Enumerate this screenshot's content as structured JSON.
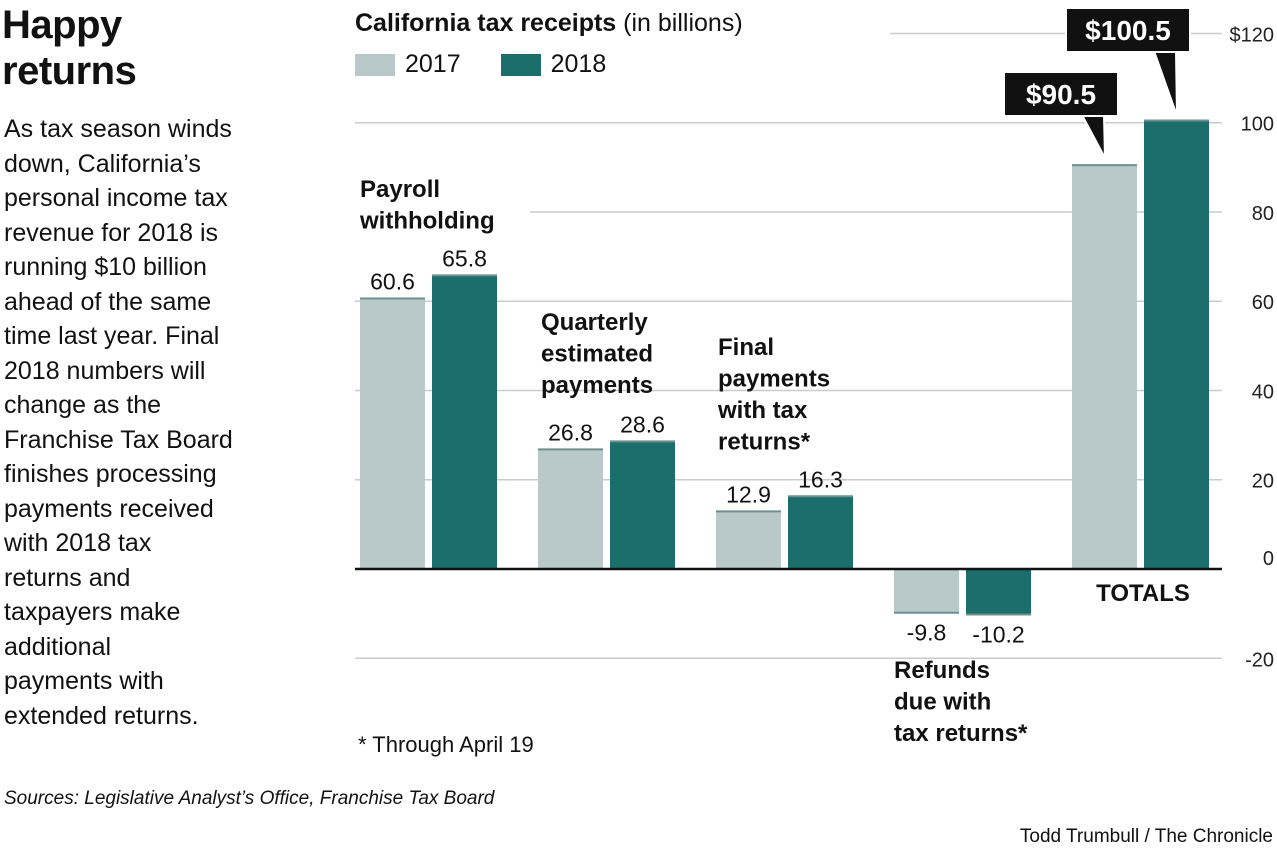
{
  "headline": "Happy\nreturns",
  "intro": "As tax season winds\ndown, California’s\npersonal income tax\nrevenue for 2018 is\nrunning $10 billion\nahead of the same\ntime last year. Final\n2018 numbers will\nchange as the\nFranchise Tax Board\nfinishes processing\npayments received\nwith 2018 tax\nreturns and\ntaxpayers make\nadditional\npayments with\nextended returns.",
  "sources": "Sources: Legislative Analyst’s Office, Franchise Tax Board",
  "credit": "Todd Trumbull / The Chronicle",
  "footnote": "* Through April 19",
  "chart_data": {
    "type": "bar",
    "title": "California tax receipts",
    "subtitle": "(in billions)",
    "categories": [
      "Payroll\nwithholding",
      "Quarterly\nestimated\npayments",
      "Final\npayments\nwith tax\nreturns*",
      "Refunds\ndue with\ntax returns*",
      "TOTALS"
    ],
    "series": [
      {
        "name": "2017",
        "color": "#b9c8c8",
        "values": [
          60.6,
          26.8,
          12.9,
          -9.8,
          90.5
        ]
      },
      {
        "name": "2018",
        "color": "#1c6e6c",
        "values": [
          65.8,
          28.6,
          16.3,
          -10.2,
          100.5
        ]
      }
    ],
    "value_labels": [
      [
        "60.6",
        "26.8",
        "12.9",
        "-9.8",
        "$90.5"
      ],
      [
        "65.8",
        "28.6",
        "16.3",
        "-10.2",
        "$100.5"
      ]
    ],
    "yticks": [
      -20,
      0,
      20,
      40,
      60,
      80,
      100,
      120
    ],
    "ytick_labels": [
      "-20",
      "0",
      "20",
      "40",
      "60",
      "80",
      "100",
      "$120"
    ],
    "ylim": [
      -20,
      120
    ],
    "grid": true,
    "legend": "top-left"
  }
}
